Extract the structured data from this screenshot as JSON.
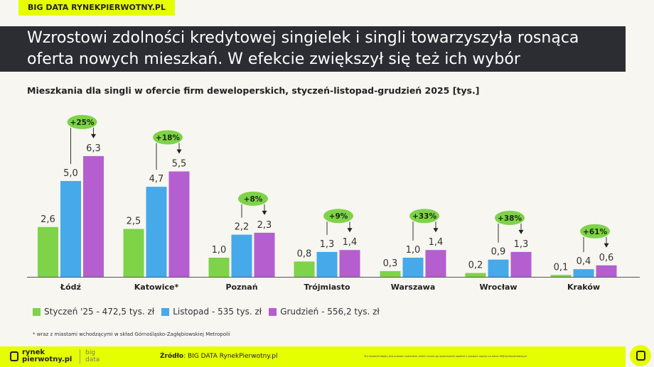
{
  "tag": "BIG DATA RYNEKPIERWOTNY.PL",
  "headline_1": "Wzrostowi zdolności kredytowej singielek i singli towarzyszyła rosnąca",
  "headline_2": "oferta nowych mieszkań.  W efekcie zwiększył się też ich wybór",
  "chart_data": {
    "type": "bar",
    "title": "Mieszkania dla singli w ofercie firm deweloperskich, styczeń-listopad-grudzień 2025 [tys.]",
    "categories": [
      "Łódź",
      "Katowice*",
      "Poznań",
      "Trójmiasto",
      "Warszawa",
      "Wrocław",
      "Kraków"
    ],
    "series": [
      {
        "name": "Styczeń '25 - 472,5 tys. zł",
        "color": "#7ed348",
        "values": [
          2.6,
          2.5,
          1.0,
          0.8,
          0.3,
          0.2,
          0.1
        ],
        "labels": [
          "2,6",
          "2,5",
          "1,0",
          "0,8",
          "0,3",
          "0,2",
          "0,1"
        ]
      },
      {
        "name": "Listopad - 535 tys. zł",
        "color": "#46a9ea",
        "values": [
          5.0,
          4.7,
          2.2,
          1.3,
          1.0,
          0.9,
          0.4
        ],
        "labels": [
          "5,0",
          "4,7",
          "2,2",
          "1,3",
          "1,0",
          "0,9",
          "0,4"
        ]
      },
      {
        "name": "Grudzień - 556,2 tys. zł",
        "color": "#b55ecf",
        "values": [
          6.3,
          5.5,
          2.3,
          1.4,
          1.4,
          1.3,
          0.6
        ],
        "labels": [
          "6,3",
          "5,5",
          "2,3",
          "1,4",
          "1,4",
          "1,3",
          "0,6"
        ]
      }
    ],
    "changes": [
      "+25%",
      "+18%",
      "+8%",
      "+9%",
      "+33%",
      "+38%",
      "+61%"
    ],
    "change_color": "#7ed348",
    "legend": "bottom-left",
    "grid": false
  },
  "note": "* wraz z miastami wchodzącymi w skład Górnośląsko-Zagłębiowskiej Metropolii",
  "footer": {
    "logo_1": "rynek",
    "logo_2": "pierwotny.pl",
    "bd_1": "big",
    "bd_2": "data",
    "source_label": "Źródło",
    "source": ": BIG DATA RynekPierwotny.pl",
    "copyright": "Ten materiał objęty jest prawem autorskim. Jeżeli chcesz go wykorzystać zgodnie z prawem napisz na adres fit@rynekpierwotny.pl"
  }
}
